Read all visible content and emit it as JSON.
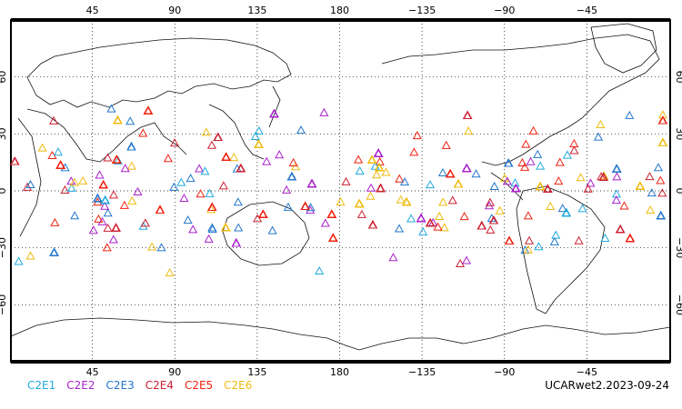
{
  "map": {
    "lon_ticks": [
      "45",
      "90",
      "135",
      "180",
      "−135",
      "−90",
      "−45"
    ],
    "lat_ticks": [
      "60",
      "30",
      "0",
      "−30",
      "−60"
    ],
    "lat_range": [
      -90,
      90
    ],
    "lon_center": 180,
    "marker": "triangle-outline",
    "occultation_lat_range": [
      -48,
      48
    ],
    "grid": "dotted"
  },
  "legend": {
    "items": [
      {
        "label": "C2E1",
        "color": "#22aadd"
      },
      {
        "label": "C2E2",
        "color": "#aa22cc"
      },
      {
        "label": "C2E3",
        "color": "#2277cc"
      },
      {
        "label": "C2E4",
        "color": "#cc2233"
      },
      {
        "label": "C2E5",
        "color": "#ee2211"
      },
      {
        "label": "C2E6",
        "color": "#eebb11"
      }
    ]
  },
  "footer": {
    "label": "UCARwet2.2023-09-24"
  }
}
